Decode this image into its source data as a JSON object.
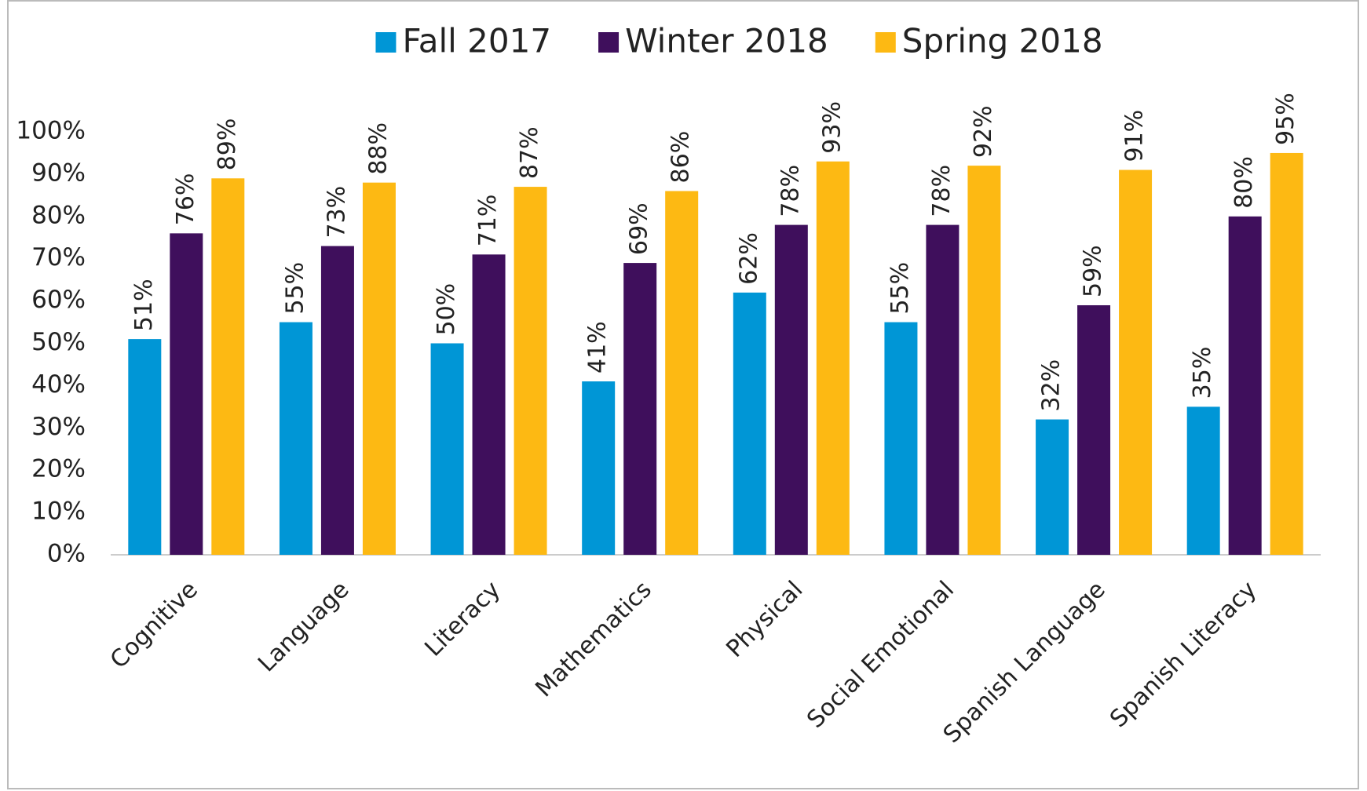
{
  "chart_data": {
    "type": "bar",
    "categories": [
      "Cognitive",
      "Language",
      "Literacy",
      "Mathematics",
      "Physical",
      "Social Emotional",
      "Spanish Language",
      "Spanish Literacy"
    ],
    "series": [
      {
        "name": "Fall 2017",
        "color": "#0096d6",
        "values": [
          51,
          55,
          50,
          41,
          62,
          55,
          32,
          35
        ],
        "value_labels": [
          "51%",
          "55%",
          "50%",
          "41%",
          "62%",
          "55%",
          "32%",
          "35%"
        ]
      },
      {
        "name": "Winter 2018",
        "color": "#3f0f5c",
        "values": [
          76,
          73,
          71,
          69,
          78,
          78,
          59,
          80
        ],
        "value_labels": [
          "76%",
          "73%",
          "71%",
          "69%",
          "78%",
          "78%",
          "59%",
          "80%"
        ]
      },
      {
        "name": "Spring 2018",
        "color": "#fdb913",
        "values": [
          89,
          88,
          87,
          86,
          93,
          92,
          91,
          95
        ],
        "value_labels": [
          "89%",
          "88%",
          "87%",
          "86%",
          "93%",
          "92%",
          "91%",
          "95%"
        ]
      }
    ],
    "ylim": [
      0,
      100
    ],
    "yticks": [
      {
        "value": 0,
        "label": "0%"
      },
      {
        "value": 10,
        "label": "10%"
      },
      {
        "value": 20,
        "label": "20%"
      },
      {
        "value": 30,
        "label": "30%"
      },
      {
        "value": 40,
        "label": "40%"
      },
      {
        "value": 50,
        "label": "50%"
      },
      {
        "value": 60,
        "label": "60%"
      },
      {
        "value": 70,
        "label": "70%"
      },
      {
        "value": 80,
        "label": "80%"
      },
      {
        "value": 90,
        "label": "90%"
      },
      {
        "value": 100,
        "label": "100%"
      }
    ],
    "grid": false,
    "legend": "top"
  }
}
